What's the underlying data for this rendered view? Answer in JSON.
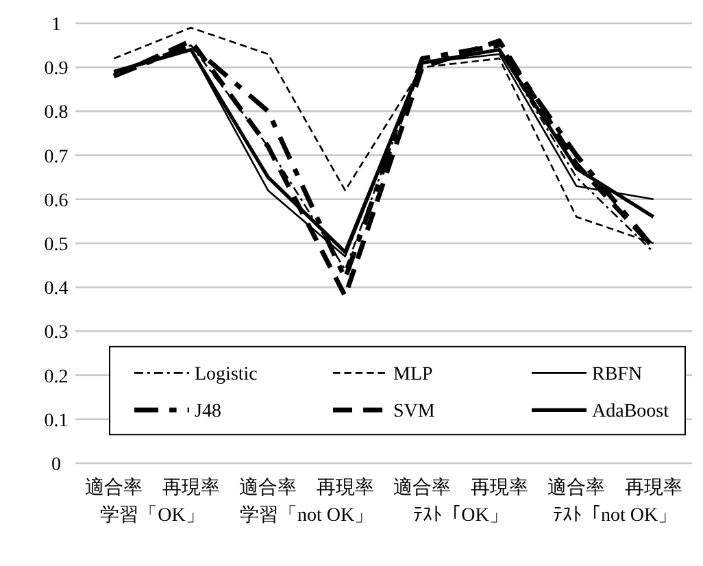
{
  "chart_data": {
    "type": "line",
    "categories": [
      "適合率",
      "再現率",
      "適合率",
      "再現率",
      "適合率",
      "再現率",
      "適合率",
      "再現率"
    ],
    "annotations": [
      "学習「OK」",
      "学習「not OK」",
      "ﾃｽﾄ「OK」",
      "ﾃｽﾄ「not OK」"
    ],
    "series": [
      {
        "name": "Logistic",
        "color": "#000000",
        "line_style": "dashdot",
        "values": [
          0.89,
          0.95,
          0.72,
          0.44,
          0.91,
          0.94,
          0.65,
          0.48
        ]
      },
      {
        "name": "MLP",
        "color": "#000000",
        "line_style": "dashed",
        "values": [
          0.92,
          0.99,
          0.93,
          0.62,
          0.9,
          0.92,
          0.56,
          0.5
        ]
      },
      {
        "name": "RBFN",
        "color": "#000000",
        "line_style": "solid",
        "values": [
          0.89,
          0.94,
          0.62,
          0.47,
          0.91,
          0.93,
          0.63,
          0.6
        ]
      },
      {
        "name": "J48",
        "color": "#000000",
        "line_style": "dashdot",
        "values": [
          0.88,
          0.95,
          0.8,
          0.42,
          0.92,
          0.95,
          0.7,
          0.49
        ]
      },
      {
        "name": "SVM",
        "color": "#000000",
        "line_style": "dashed",
        "values": [
          0.88,
          0.96,
          0.72,
          0.38,
          0.9,
          0.96,
          0.68,
          0.49
        ]
      },
      {
        "name": "AdaBoost",
        "color": "#000000",
        "line_style": "solid",
        "values": [
          0.89,
          0.94,
          0.65,
          0.48,
          0.91,
          0.94,
          0.67,
          0.56
        ]
      }
    ],
    "ylim": [
      0,
      1
    ],
    "yticks": [
      0,
      0.1,
      0.2,
      0.3,
      0.4,
      0.5,
      0.6,
      0.7,
      0.8,
      0.9,
      1
    ],
    "grid": "y",
    "legend": "bottom"
  }
}
